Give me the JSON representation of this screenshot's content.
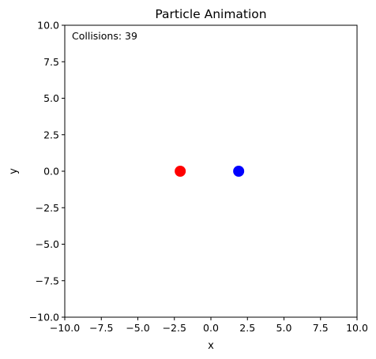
{
  "chart_data": {
    "type": "scatter",
    "title": "Particle Animation",
    "xlabel": "x",
    "ylabel": "y",
    "xlim": [
      -10,
      10
    ],
    "ylim": [
      -10,
      10
    ],
    "grid": false,
    "xticks": [
      -10,
      -7.5,
      -5,
      -2.5,
      0,
      2.5,
      5,
      7.5,
      10
    ],
    "yticks": [
      -10,
      -7.5,
      -5,
      -2.5,
      0,
      2.5,
      5,
      7.5,
      10
    ],
    "xtick_labels": [
      "−10.0",
      "−7.5",
      "−5.0",
      "−2.5",
      "0.0",
      "2.5",
      "5.0",
      "7.5",
      "10.0"
    ],
    "ytick_labels": [
      "−10.0",
      "−7.5",
      "−5.0",
      "−2.5",
      "0.0",
      "2.5",
      "5.0",
      "7.5",
      "10.0"
    ],
    "points": [
      {
        "x": -2.1,
        "y": 0.0,
        "color": "#ff0000"
      },
      {
        "x": 1.9,
        "y": 0.0,
        "color": "#0000ff"
      }
    ],
    "annotation": "Collisions: 39"
  }
}
